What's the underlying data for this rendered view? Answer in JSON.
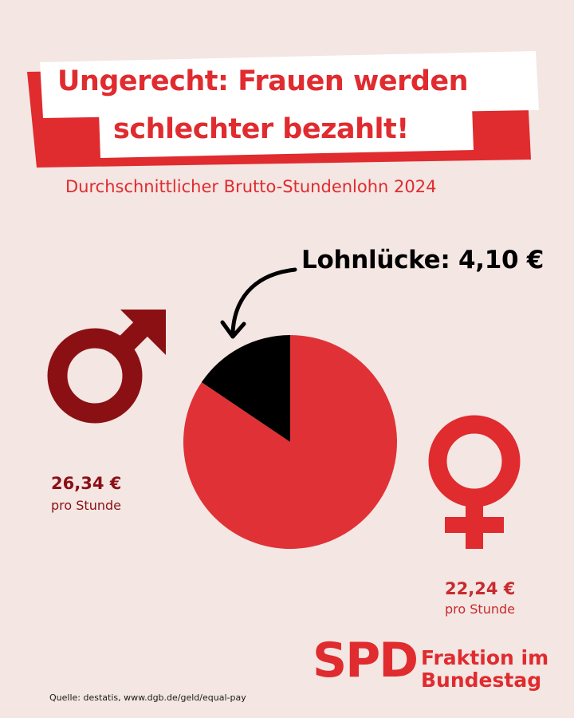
{
  "header": {
    "title_line1": "Ungerecht: Frauen werden",
    "title_line2": "schlechter bezahlt!",
    "subtitle": "Durchschnittlicher Brutto-Stundenlohn 2024"
  },
  "chart_data": {
    "type": "pie",
    "title": "Durchschnittlicher Brutto-Stundenlohn 2024",
    "total_value": 26.34,
    "slices": [
      {
        "label": "22,24 €",
        "value": 22.24,
        "color": "#e03236"
      },
      {
        "label": "Lohnlücke: 4,10 €",
        "value": 4.1,
        "color": "#000000"
      }
    ],
    "annotation": "Lohnlücke: 4,10 €"
  },
  "men": {
    "icon": "male-symbol-icon",
    "value": "26,34 €",
    "unit": "pro Stunde",
    "color": "#8b1014"
  },
  "women": {
    "icon": "female-symbol-icon",
    "value": "22,24 €",
    "unit": "pro Stunde",
    "color": "#e02b2f"
  },
  "logo": {
    "brand": "SPD",
    "line1": "Fraktion im",
    "line2": "Bundestag"
  },
  "source": "Quelle: destatis, www.dgb.de/geld/equal-pay",
  "colors": {
    "background": "#f3e6e3",
    "accent": "#e02b2f",
    "dark_red": "#8b1014"
  }
}
